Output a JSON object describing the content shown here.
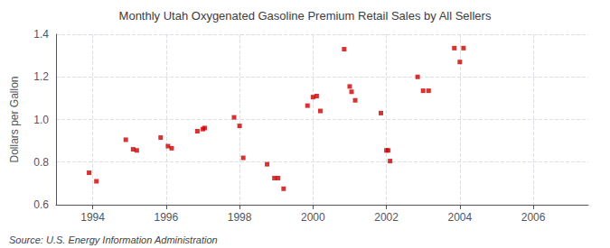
{
  "chart_data": {
    "type": "scatter",
    "title": "Monthly Utah Oxygenated Gasoline Premium Retail Sales by All Sellers",
    "ylabel": "Dollars per Gallon",
    "annotations": [
      "Source: U.S. Energy Information Administration"
    ],
    "color": "#cc0000",
    "marker": "square",
    "grid": true,
    "xlim": [
      1993.0,
      2007.5
    ],
    "ylim": [
      0.6,
      1.4
    ],
    "xticks": [
      1994,
      1996,
      1998,
      2000,
      2002,
      2004,
      2006
    ],
    "yticks": [
      0.6,
      0.8,
      {
        "value": 1.0,
        "label": "1.0"
      },
      1.2,
      1.4
    ],
    "x": [
      1993.9,
      1994.1,
      1994.9,
      1995.1,
      1995.2,
      1995.85,
      1996.05,
      1996.15,
      1996.85,
      1997.0,
      1997.05,
      1997.85,
      1998.0,
      1998.1,
      1998.75,
      1998.95,
      1999.05,
      1999.2,
      1999.85,
      2000.0,
      2000.1,
      2000.2,
      2000.85,
      2001.0,
      2001.05,
      2001.15,
      2001.85,
      2002.0,
      2002.05,
      2002.1,
      2002.85,
      2003.0,
      2003.15,
      2003.85,
      2004.0,
      2004.1
    ],
    "values": [
      0.75,
      0.71,
      0.905,
      0.86,
      0.855,
      0.915,
      0.875,
      0.865,
      0.945,
      0.955,
      0.96,
      1.01,
      0.97,
      0.82,
      0.79,
      0.725,
      0.725,
      0.675,
      1.065,
      1.105,
      1.11,
      1.04,
      1.33,
      1.155,
      1.13,
      1.09,
      1.03,
      0.855,
      0.855,
      0.805,
      1.2,
      1.135,
      1.135,
      1.335,
      1.27,
      1.335
    ]
  }
}
